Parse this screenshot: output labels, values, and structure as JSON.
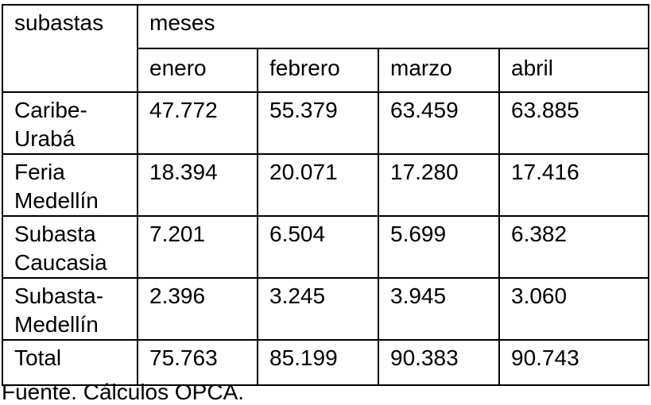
{
  "table": {
    "header": {
      "row_label": "subastas",
      "group": "meses",
      "months": [
        "enero",
        "febrero",
        "marzo",
        "abril"
      ]
    },
    "rows": [
      [
        "Caribe-Urabá",
        "47.772",
        "55.379",
        "63.459",
        "63.885"
      ],
      [
        "Feria Medellín",
        "18.394",
        "20.071",
        "17.280",
        "17.416"
      ],
      [
        "Subasta Caucasia",
        "7.201",
        "6.504",
        "5.699",
        "6.382"
      ],
      [
        "Subasta-Medellín",
        "2.396",
        "3.245",
        "3.945",
        "3.060"
      ],
      [
        "Total",
        "75.763",
        "85.199",
        "90.383",
        "90.743"
      ]
    ]
  },
  "source": "Fuente. Cálculos OPCA."
}
